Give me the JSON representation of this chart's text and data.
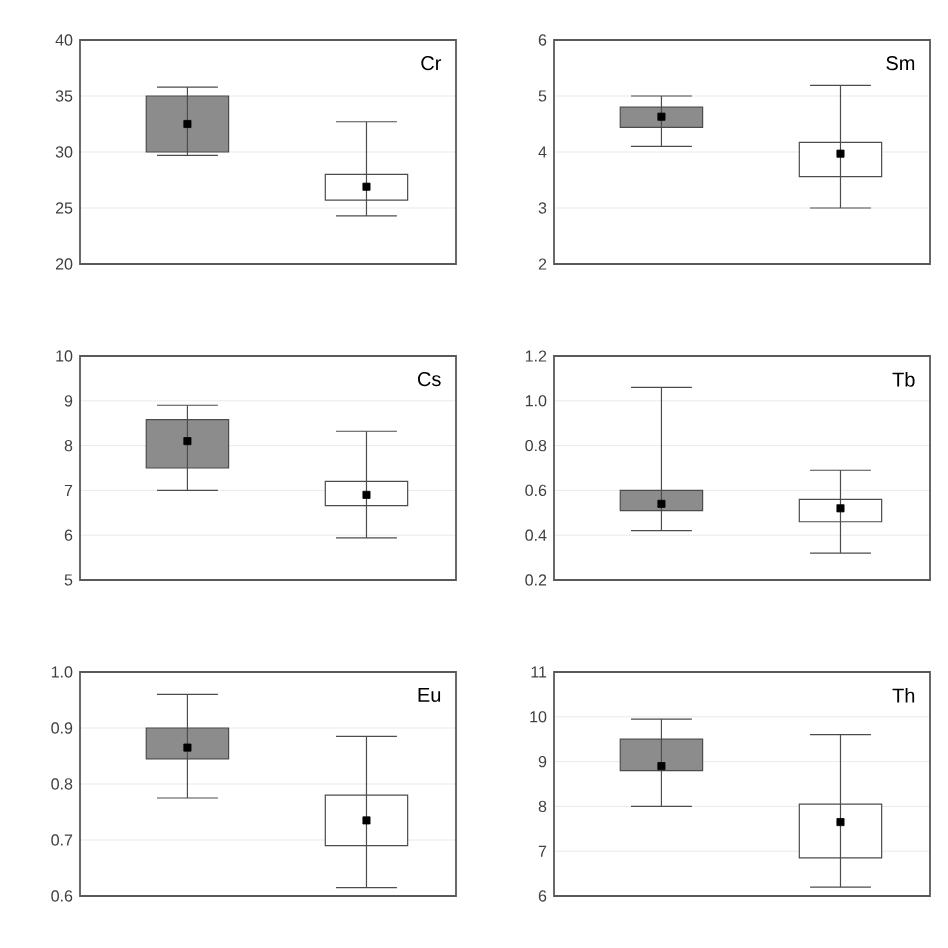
{
  "chart_data": [
    {
      "type": "box",
      "categories": [
        null,
        null
      ],
      "ylim": [
        20,
        40
      ],
      "yticks": [
        20,
        25,
        30,
        35,
        40
      ],
      "grid": "y",
      "marker": "square",
      "tick_labels": "y",
      "colors": [
        "#8c8c8c",
        "#ffffff"
      ],
      "annotations": [
        "Cr"
      ],
      "boxes": [
        {
          "low": 29.7,
          "q1": 30.0,
          "median": 32.5,
          "q3": 35.0,
          "high": 35.8
        },
        {
          "low": 24.3,
          "q1": 25.7,
          "median": 26.9,
          "q3": 28.0,
          "high": 32.7
        }
      ]
    },
    {
      "type": "box",
      "categories": [
        null,
        null
      ],
      "ylim": [
        2,
        6
      ],
      "yticks": [
        2,
        3,
        4,
        5,
        6
      ],
      "grid": "y",
      "marker": "square",
      "tick_labels": "y",
      "colors": [
        "#8c8c8c",
        "#ffffff"
      ],
      "annotations": [
        "Sm"
      ],
      "boxes": [
        {
          "low": 4.1,
          "q1": 4.44,
          "median": 4.63,
          "q3": 4.8,
          "high": 5.0
        },
        {
          "low": 3.0,
          "q1": 3.56,
          "median": 3.97,
          "q3": 4.17,
          "high": 5.19
        }
      ]
    },
    {
      "type": "box",
      "categories": [
        null,
        null
      ],
      "ylim": [
        5,
        10
      ],
      "yticks": [
        5,
        6,
        7,
        8,
        9,
        10
      ],
      "grid": "y",
      "marker": "square",
      "tick_labels": "y",
      "colors": [
        "#8c8c8c",
        "#ffffff"
      ],
      "annotations": [
        "Cs"
      ],
      "boxes": [
        {
          "low": 7.0,
          "q1": 7.5,
          "median": 8.1,
          "q3": 8.58,
          "high": 8.9
        },
        {
          "low": 5.94,
          "q1": 6.66,
          "median": 6.9,
          "q3": 7.2,
          "high": 8.32
        }
      ]
    },
    {
      "type": "box",
      "categories": [
        null,
        null
      ],
      "ylim": [
        0.2,
        1.2
      ],
      "yticks": [
        0.2,
        0.4,
        0.6,
        0.8,
        {
          "value": 1.0,
          "label": "1.0"
        },
        1.2
      ],
      "grid": "y",
      "marker": "square",
      "tick_labels": "y",
      "colors": [
        "#8c8c8c",
        "#ffffff"
      ],
      "annotations": [
        "Tb"
      ],
      "boxes": [
        {
          "low": 0.42,
          "q1": 0.51,
          "median": 0.54,
          "q3": 0.6,
          "high": 1.06
        },
        {
          "low": 0.32,
          "q1": 0.46,
          "median": 0.52,
          "q3": 0.56,
          "high": 0.69
        }
      ]
    },
    {
      "type": "box",
      "categories": [
        null,
        null
      ],
      "ylim": [
        0.6,
        1.0
      ],
      "yticks": [
        0.6,
        0.7,
        0.8,
        0.9,
        {
          "value": 1.0,
          "label": "1.0"
        }
      ],
      "grid": "y",
      "marker": "square",
      "tick_labels": "y",
      "colors": [
        "#8c8c8c",
        "#ffffff"
      ],
      "annotations": [
        "Eu"
      ],
      "boxes": [
        {
          "low": 0.775,
          "q1": 0.845,
          "median": 0.865,
          "q3": 0.9,
          "high": 0.96
        },
        {
          "low": 0.615,
          "q1": 0.69,
          "median": 0.735,
          "q3": 0.78,
          "high": 0.885
        }
      ]
    },
    {
      "type": "box",
      "categories": [
        null,
        null
      ],
      "ylim": [
        6,
        11
      ],
      "yticks": [
        6,
        7,
        8,
        9,
        10,
        11
      ],
      "grid": "y",
      "marker": "square",
      "tick_labels": "y",
      "colors": [
        "#8c8c8c",
        "#ffffff"
      ],
      "annotations": [
        "Th"
      ],
      "boxes": [
        {
          "low": 8.0,
          "q1": 8.8,
          "median": 8.9,
          "q3": 9.5,
          "high": 9.95
        },
        {
          "low": 6.2,
          "q1": 6.85,
          "median": 7.65,
          "q3": 8.05,
          "high": 9.6
        }
      ]
    }
  ]
}
